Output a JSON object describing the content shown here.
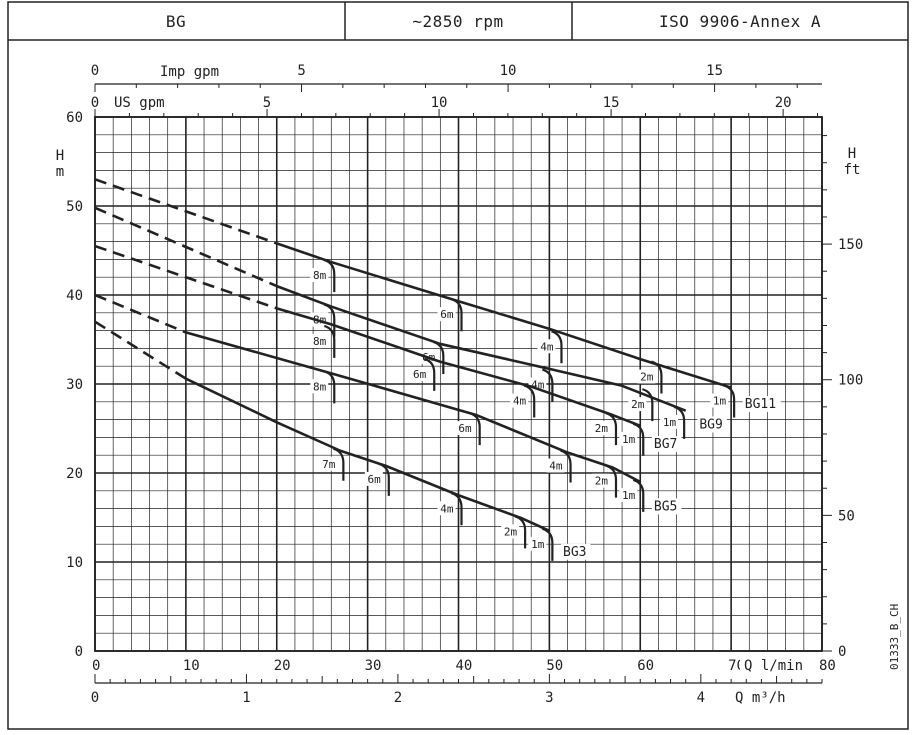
{
  "header": {
    "model": "BG",
    "speed": "~2850 rpm",
    "standard": "ISO 9906-Annex A"
  },
  "code": "01333_B_CH",
  "chart_data": {
    "type": "line",
    "axes": {
      "q_lmin": {
        "label": "Q l/min",
        "min": 0,
        "max": 80,
        "ticks": [
          "0",
          "10",
          "20",
          "30",
          "40",
          "50",
          "60",
          "70",
          "80"
        ]
      },
      "q_m3h": {
        "label": "Q m³/h",
        "min": 0,
        "max": 4.8,
        "ticks": [
          "0",
          "1",
          "2",
          "3",
          "4"
        ]
      },
      "us_gpm": {
        "label": "US gpm",
        "min": 0,
        "max": 21.13,
        "ticks": [
          "0",
          "5",
          "10",
          "15",
          "20"
        ]
      },
      "imp_gpm": {
        "label": "Imp gpm",
        "min": 0,
        "max": 17.6,
        "ticks": [
          "0",
          "5",
          "10",
          "15"
        ]
      },
      "h_m": {
        "label_top": "H",
        "label_bottom": "m",
        "min": 0,
        "max": 60,
        "ticks": [
          "0",
          "10",
          "20",
          "30",
          "40",
          "50",
          "60"
        ]
      },
      "h_ft": {
        "label_top": "H",
        "label_bottom": "ft",
        "min": 0,
        "max": 196.85,
        "ticks": [
          "0",
          "50",
          "100",
          "150"
        ]
      }
    },
    "grid": true,
    "series": [
      {
        "name": "BG11",
        "dashed": [
          [
            0,
            53.0
          ],
          [
            20,
            45.8
          ]
        ],
        "solid": [
          [
            20,
            45.8
          ],
          [
            26,
            43.7
          ],
          [
            40,
            39.3
          ],
          [
            50,
            36.2
          ],
          [
            60,
            32.8
          ],
          [
            70,
            29.6
          ]
        ],
        "name_at": [
          71.5,
          27.3
        ],
        "npsh": [
          {
            "label": "8m",
            "x": 26,
            "y": 43.7
          },
          {
            "label": "6m",
            "x": 40,
            "y": 39.3
          },
          {
            "label": "4m",
            "x": 51,
            "y": 35.7
          },
          {
            "label": "2m",
            "x": 62,
            "y": 32.3
          },
          {
            "label": "1m",
            "x": 70,
            "y": 29.6
          }
        ]
      },
      {
        "name": "BG9",
        "dashed": [
          [
            0,
            49.8
          ],
          [
            20,
            41.0
          ]
        ],
        "solid": [
          [
            20,
            41.0
          ],
          [
            26,
            38.7
          ],
          [
            38,
            34.5
          ],
          [
            50,
            31.7
          ],
          [
            58,
            29.8
          ],
          [
            65,
            27.0
          ]
        ],
        "name_at": [
          66.5,
          25.0
        ],
        "npsh": [
          {
            "label": "8m",
            "x": 26,
            "y": 38.7
          },
          {
            "label": "6m",
            "x": 38,
            "y": 34.5
          },
          {
            "label": "4m",
            "x": 50,
            "y": 31.4
          },
          {
            "label": "2m",
            "x": 61,
            "y": 29.2
          },
          {
            "label": "1m",
            "x": 64.5,
            "y": 27.2
          }
        ]
      },
      {
        "name": "BG7",
        "dashed": [
          [
            0,
            45.5
          ],
          [
            20,
            38.5
          ]
        ],
        "solid": [
          [
            20,
            38.5
          ],
          [
            26,
            36.7
          ],
          [
            38,
            32.5
          ],
          [
            48,
            29.7
          ],
          [
            57,
            26.5
          ],
          [
            60,
            25.3
          ]
        ],
        "name_at": [
          61.5,
          22.8
        ],
        "npsh": [
          {
            "label": "8m",
            "x": 26,
            "y": 36.3
          },
          {
            "label": "6m",
            "x": 37,
            "y": 32.6
          },
          {
            "label": "4m",
            "x": 48,
            "y": 29.6
          },
          {
            "label": "2m",
            "x": 57,
            "y": 26.5
          },
          {
            "label": "1m",
            "x": 60,
            "y": 25.3
          }
        ]
      },
      {
        "name": "BG5",
        "dashed": [
          [
            0,
            40.0
          ],
          [
            10,
            35.8
          ]
        ],
        "solid": [
          [
            10,
            35.8
          ],
          [
            26,
            31.2
          ],
          [
            42,
            26.5
          ],
          [
            52,
            22.3
          ],
          [
            57,
            20.6
          ],
          [
            60,
            19.0
          ]
        ],
        "name_at": [
          61.5,
          15.8
        ],
        "npsh": [
          {
            "label": "8m",
            "x": 26,
            "y": 31.2
          },
          {
            "label": "6m",
            "x": 42,
            "y": 26.5
          },
          {
            "label": "4m",
            "x": 52,
            "y": 22.3
          },
          {
            "label": "2m",
            "x": 57,
            "y": 20.6
          },
          {
            "label": "1m",
            "x": 60,
            "y": 19.0
          }
        ]
      },
      {
        "name": "BG3",
        "dashed": [
          [
            0,
            37.0
          ],
          [
            10,
            30.6
          ]
        ],
        "solid": [
          [
            10,
            30.6
          ],
          [
            20,
            25.7
          ],
          [
            27,
            22.5
          ],
          [
            32,
            20.8
          ],
          [
            40,
            17.5
          ],
          [
            47,
            14.9
          ],
          [
            50,
            13.5
          ]
        ],
        "name_at": [
          51.5,
          10.7
        ],
        "npsh": [
          {
            "label": "7m",
            "x": 27,
            "y": 22.5
          },
          {
            "label": "6m",
            "x": 32,
            "y": 20.8
          },
          {
            "label": "4m",
            "x": 40,
            "y": 17.5
          },
          {
            "label": "2m",
            "x": 47,
            "y": 14.9
          },
          {
            "label": "1m",
            "x": 50,
            "y": 13.5
          }
        ]
      }
    ]
  }
}
